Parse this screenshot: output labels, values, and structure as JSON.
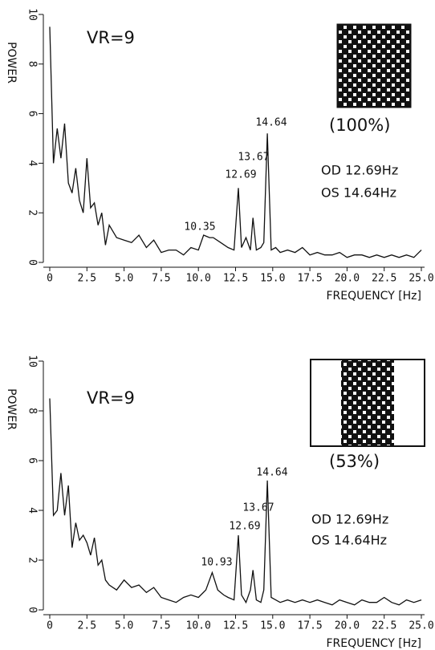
{
  "chart_data": [
    {
      "type": "line",
      "ylabel": "POWER",
      "xlabel": "FREQUENCY [Hz]",
      "annotations": [
        "VR=9",
        "(100%)",
        "OD 12.69Hz",
        "OS 14.64Hz",
        "14.64",
        "13.67",
        "12.69",
        "10.35"
      ],
      "x": [
        0,
        0.25,
        0.5,
        0.75,
        1,
        1.25,
        1.5,
        1.75,
        2,
        2.25,
        2.5,
        2.75,
        3,
        3.25,
        3.5,
        3.75,
        4,
        4.5,
        5,
        5.5,
        6,
        6.5,
        7,
        7.5,
        8,
        8.5,
        9,
        9.5,
        10,
        10.35,
        10.75,
        11,
        11.5,
        12,
        12.4,
        12.69,
        12.9,
        13.2,
        13.5,
        13.67,
        13.9,
        14.2,
        14.4,
        14.64,
        14.9,
        15.2,
        15.5,
        16,
        16.5,
        17,
        17.5,
        18,
        18.5,
        19,
        19.5,
        20,
        20.5,
        21,
        21.5,
        22,
        22.5,
        23,
        23.5,
        24,
        24.5,
        25
      ],
      "series": [
        {
          "color": "#111111",
          "values": [
            9.5,
            4.0,
            5.4,
            4.2,
            5.6,
            3.2,
            2.8,
            3.8,
            2.5,
            2.0,
            4.2,
            2.2,
            2.4,
            1.5,
            2.0,
            0.7,
            1.5,
            1.0,
            0.9,
            0.8,
            1.1,
            0.6,
            0.9,
            0.4,
            0.5,
            0.5,
            0.3,
            0.6,
            0.5,
            1.1,
            1.0,
            1.0,
            0.8,
            0.6,
            0.5,
            3.0,
            0.6,
            1.0,
            0.5,
            1.8,
            0.5,
            0.6,
            0.8,
            5.2,
            0.5,
            0.6,
            0.4,
            0.5,
            0.4,
            0.6,
            0.3,
            0.4,
            0.3,
            0.3,
            0.4,
            0.2,
            0.3,
            0.3,
            0.2,
            0.3,
            0.2,
            0.3,
            0.2,
            0.3,
            0.2,
            0.5
          ]
        }
      ],
      "xlim": [
        0,
        25
      ],
      "ylim": [
        0,
        10
      ],
      "xticks": [
        0,
        2.5,
        {
          "value": 5,
          "label": "5.0"
        },
        7.5,
        {
          "value": 10,
          "label": "10.0"
        },
        12.5,
        {
          "value": 15,
          "label": "15.0"
        },
        17.5,
        {
          "value": 20,
          "label": "20.0"
        },
        22.5,
        {
          "value": 25,
          "label": "25.0"
        }
      ],
      "yticks": [
        0,
        2,
        4,
        6,
        8,
        10
      ]
    },
    {
      "type": "line",
      "ylabel": "POWER",
      "xlabel": "FREQUENCY [Hz]",
      "annotations": [
        "VR=9",
        "(53%)",
        "OD 12.69Hz",
        "OS 14.64Hz",
        "14.64",
        "13.67",
        "12.69",
        "10.93"
      ],
      "x": [
        0,
        0.25,
        0.5,
        0.75,
        1,
        1.25,
        1.5,
        1.75,
        2,
        2.25,
        2.5,
        2.75,
        3,
        3.25,
        3.5,
        3.75,
        4,
        4.5,
        5,
        5.5,
        6,
        6.5,
        7,
        7.5,
        8,
        8.5,
        9,
        9.5,
        10,
        10.5,
        10.93,
        11.3,
        11.7,
        12,
        12.4,
        12.69,
        12.9,
        13.2,
        13.5,
        13.67,
        13.9,
        14.2,
        14.4,
        14.64,
        14.9,
        15.2,
        15.5,
        16,
        16.5,
        17,
        17.5,
        18,
        18.5,
        19,
        19.5,
        20,
        20.5,
        21,
        21.5,
        22,
        22.5,
        23,
        23.5,
        24,
        24.5,
        25
      ],
      "series": [
        {
          "color": "#111111",
          "values": [
            8.5,
            3.8,
            4.0,
            5.5,
            3.8,
            5.0,
            2.5,
            3.5,
            2.8,
            3.0,
            2.7,
            2.2,
            2.9,
            1.8,
            2.0,
            1.2,
            1.0,
            0.8,
            1.2,
            0.9,
            1.0,
            0.7,
            0.9,
            0.5,
            0.4,
            0.3,
            0.5,
            0.6,
            0.5,
            0.8,
            1.5,
            0.8,
            0.6,
            0.5,
            0.4,
            3.0,
            0.6,
            0.3,
            0.8,
            1.6,
            0.4,
            0.3,
            0.8,
            5.2,
            0.5,
            0.4,
            0.3,
            0.4,
            0.3,
            0.4,
            0.3,
            0.4,
            0.3,
            0.2,
            0.4,
            0.3,
            0.2,
            0.4,
            0.3,
            0.3,
            0.5,
            0.3,
            0.2,
            0.4,
            0.3,
            0.4
          ]
        }
      ],
      "xlim": [
        0,
        25
      ],
      "ylim": [
        0,
        10
      ],
      "xticks": [
        0,
        2.5,
        {
          "value": 5,
          "label": "5.0"
        },
        7.5,
        {
          "value": 10,
          "label": "10.0"
        },
        12.5,
        {
          "value": 15,
          "label": "15.0"
        },
        17.5,
        {
          "value": 20,
          "label": "20.0"
        },
        22.5,
        {
          "value": 25,
          "label": "25.0"
        }
      ],
      "yticks": [
        0,
        2,
        4,
        6,
        8,
        10
      ]
    }
  ]
}
